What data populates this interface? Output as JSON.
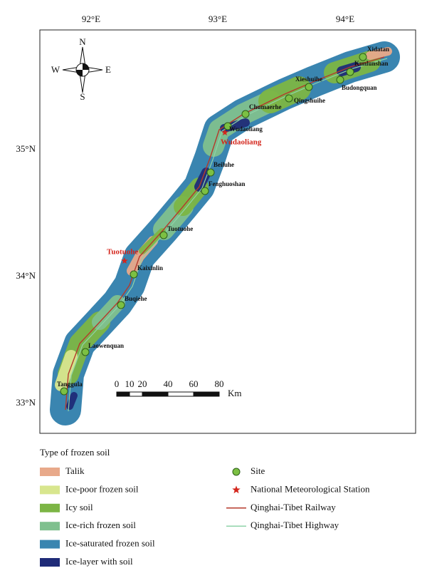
{
  "axes": {
    "lon_labels": [
      "92°E",
      "93°E",
      "94°E"
    ],
    "lat_labels": [
      "35°N",
      "34°N",
      "33°N"
    ]
  },
  "compass": {
    "n": "N",
    "s": "S",
    "w": "W",
    "e": "E"
  },
  "scale_bar": {
    "ticks": [
      0,
      10,
      20,
      40,
      60,
      80
    ],
    "unit": "Km"
  },
  "sites": [
    "Xidatan",
    "Kunlunshan",
    "Budongquan",
    "Xieshuihe",
    "Qingshuihe",
    "Chumaerhe",
    "Wudaoliang",
    "Beiluhe",
    "Fenghuoshan",
    "Tuotuohe",
    "Kaixinlin",
    "Buqiehe",
    "Laowenquan",
    "Tanggula"
  ],
  "stations": [
    "Wudaoliang",
    "Tuotuohe"
  ],
  "legend": {
    "title": "Type of frozen soil",
    "soil_types": [
      {
        "label": "Talik",
        "color": "#e8a98a"
      },
      {
        "label": "Ice-poor frozen soil",
        "color": "#d8e68e"
      },
      {
        "label": "Icy soil",
        "color": "#7cb545"
      },
      {
        "label": "Ice-rich frozen soil",
        "color": "#7fc08e"
      },
      {
        "label": "Ice-saturated frozen soil",
        "color": "#3a85b0"
      },
      {
        "label": "Ice-layer with soil",
        "color": "#1f2b78"
      }
    ],
    "symbols": [
      "Site",
      "National Meteorological Station",
      "Qinghai-Tibet Railway",
      "Qinghai-Tibet Highway"
    ]
  }
}
